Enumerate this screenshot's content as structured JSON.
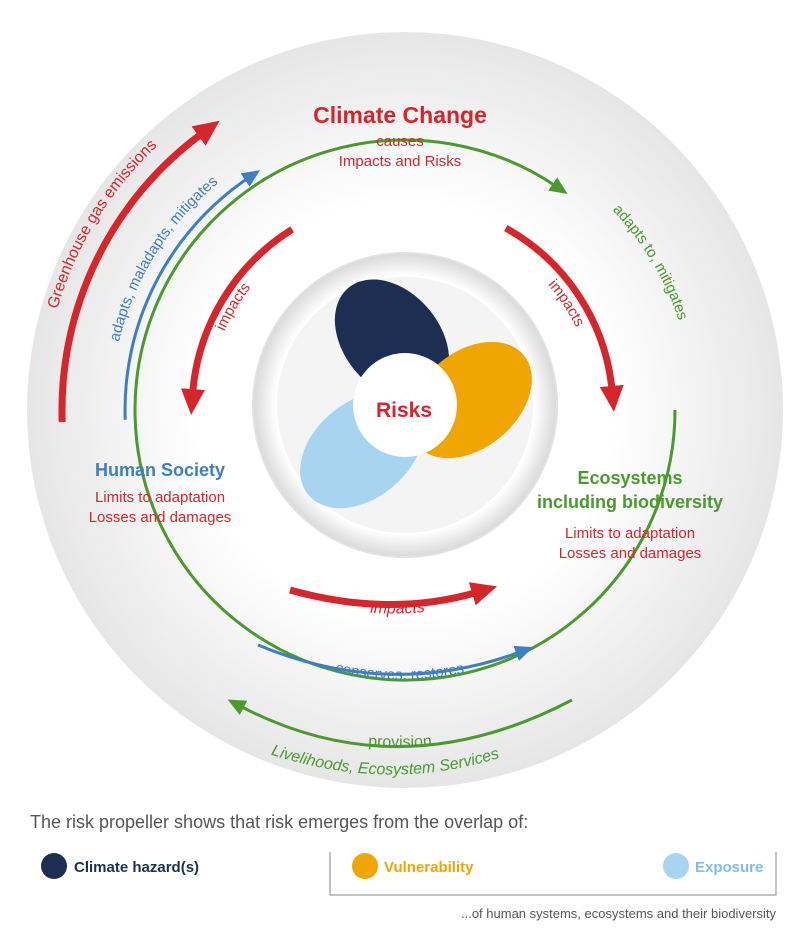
{
  "diagram": {
    "climate_change": {
      "name": "Climate Change",
      "line1": "causes",
      "line2": "Impacts and Risks"
    },
    "center": "Risks",
    "human_society": {
      "name": "Human Society",
      "line1": "Limits to adaptation",
      "line2": "Losses and damages"
    },
    "ecosystems": {
      "name1": "Ecosystems",
      "name2": "including biodiversity",
      "line1": "Limits to adaptation",
      "line2": "Losses and damages"
    },
    "arrows": {
      "emissions": "Greenhouse gas emissions",
      "adapts": "adapts, maladapts, mitigates",
      "impacts_left": "impacts",
      "adapts_right": "adapts to, mitigates",
      "impacts_right": "impacts",
      "impacts_bottom": "impacts",
      "conserves": "conserves, restores",
      "provision": "provision",
      "services": "Livelihoods, Ecosystem Services"
    }
  },
  "caption": "The risk propeller shows that risk emerges from the overlap of:",
  "legend": [
    "Climate hazard(s)",
    "Vulnerability",
    "Exposure"
  ],
  "legend_note": "...of human systems, ecosystems and their biodiversity"
}
